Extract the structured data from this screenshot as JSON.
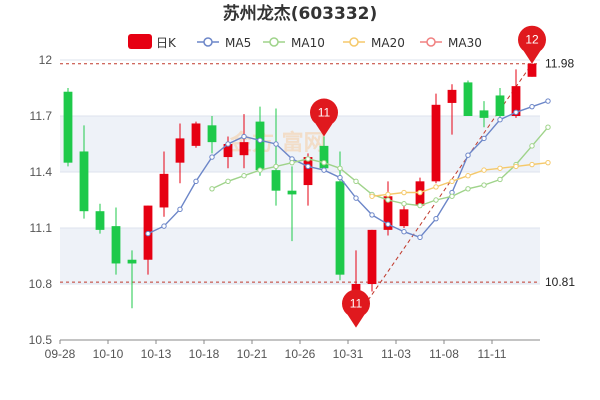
{
  "title": "苏州龙杰(603332)",
  "watermark": "金方 富网",
  "legend": [
    {
      "key": "k",
      "label": "日K",
      "color": "#e60012"
    },
    {
      "key": "ma5",
      "label": "MA5",
      "color": "#6c86c8"
    },
    {
      "key": "ma10",
      "label": "MA10",
      "color": "#9fd38a"
    },
    {
      "key": "ma20",
      "label": "MA20",
      "color": "#f5c96b"
    },
    {
      "key": "ma30",
      "label": "MA30",
      "color": "#f08080"
    }
  ],
  "colors": {
    "up": "#e60012",
    "down": "#1ec94a",
    "grid": "#dde3ee",
    "band": "#eef2f8",
    "ref": "#c0392b"
  },
  "chart_data": {
    "type": "candlestick",
    "title": "苏州龙杰(603332)",
    "ylim": [
      10.5,
      12.0
    ],
    "yticks": [
      10.5,
      10.8,
      11.1,
      11.4,
      11.7,
      12
    ],
    "xticks": [
      "09-28",
      "10-10",
      "10-13",
      "10-18",
      "10-21",
      "10-26",
      "10-31",
      "11-03",
      "11-08",
      "11-11"
    ],
    "candles": [
      {
        "o": 11.83,
        "h": 11.85,
        "l": 11.43,
        "c": 11.45
      },
      {
        "o": 11.51,
        "h": 11.65,
        "l": 11.15,
        "c": 11.19
      },
      {
        "o": 11.19,
        "h": 11.23,
        "l": 11.07,
        "c": 11.09
      },
      {
        "o": 11.11,
        "h": 11.21,
        "l": 10.85,
        "c": 10.91
      },
      {
        "o": 10.93,
        "h": 10.98,
        "l": 10.67,
        "c": 10.91
      },
      {
        "o": 10.93,
        "h": 11.22,
        "l": 10.85,
        "c": 11.22
      },
      {
        "o": 11.21,
        "h": 11.51,
        "l": 11.16,
        "c": 11.39
      },
      {
        "o": 11.45,
        "h": 11.66,
        "l": 11.34,
        "c": 11.58
      },
      {
        "o": 11.54,
        "h": 11.67,
        "l": 11.53,
        "c": 11.66
      },
      {
        "o": 11.65,
        "h": 11.7,
        "l": 11.5,
        "c": 11.56
      },
      {
        "o": 11.48,
        "h": 11.59,
        "l": 11.42,
        "c": 11.55
      },
      {
        "o": 11.49,
        "h": 11.71,
        "l": 11.42,
        "c": 11.56
      },
      {
        "o": 11.67,
        "h": 11.75,
        "l": 11.38,
        "c": 11.41
      },
      {
        "o": 11.41,
        "h": 11.74,
        "l": 11.22,
        "c": 11.3
      },
      {
        "o": 11.3,
        "h": 11.43,
        "l": 11.03,
        "c": 11.28
      },
      {
        "o": 11.33,
        "h": 11.5,
        "l": 11.22,
        "c": 11.48
      },
      {
        "o": 11.54,
        "h": 11.59,
        "l": 11.42,
        "c": 11.42
      },
      {
        "o": 11.35,
        "h": 11.51,
        "l": 10.82,
        "c": 10.85
      },
      {
        "o": 10.76,
        "h": 10.98,
        "l": 10.62,
        "c": 10.8
      },
      {
        "o": 10.8,
        "h": 11.09,
        "l": 10.76,
        "c": 11.09
      },
      {
        "o": 11.09,
        "h": 11.35,
        "l": 11.06,
        "c": 11.27
      },
      {
        "o": 11.11,
        "h": 11.23,
        "l": 11.1,
        "c": 11.2
      },
      {
        "o": 11.22,
        "h": 11.37,
        "l": 11.21,
        "c": 11.35
      },
      {
        "o": 11.35,
        "h": 11.82,
        "l": 11.34,
        "c": 11.76
      },
      {
        "o": 11.77,
        "h": 11.87,
        "l": 11.6,
        "c": 11.84
      },
      {
        "o": 11.88,
        "h": 11.89,
        "l": 11.7,
        "c": 11.7
      },
      {
        "o": 11.73,
        "h": 11.78,
        "l": 11.64,
        "c": 11.69
      },
      {
        "o": 11.81,
        "h": 11.85,
        "l": 11.69,
        "c": 11.7
      },
      {
        "o": 11.7,
        "h": 11.95,
        "l": 11.69,
        "c": 11.86
      },
      {
        "o": 11.91,
        "h": 11.98,
        "l": 11.91,
        "c": 11.98
      }
    ],
    "series": [
      {
        "name": "MA5",
        "start": 5,
        "values": [
          11.07,
          11.11,
          11.2,
          11.35,
          11.48,
          11.55,
          11.59,
          11.57,
          11.55,
          11.47,
          11.43,
          11.41,
          11.37,
          11.26,
          11.17,
          11.12,
          11.08,
          11.05,
          11.15,
          11.29,
          11.49,
          11.58,
          11.68,
          11.72,
          11.75,
          11.78
        ]
      },
      {
        "name": "MA10",
        "start": 9,
        "values": [
          11.31,
          11.35,
          11.38,
          11.41,
          11.43,
          11.45,
          11.47,
          11.45,
          11.42,
          11.35,
          11.28,
          11.25,
          11.23,
          11.22,
          11.25,
          11.27,
          11.31,
          11.33,
          11.36,
          11.44,
          11.54,
          11.64
        ]
      },
      {
        "name": "MA20",
        "start": 19,
        "values": [
          11.27,
          11.28,
          11.29,
          11.29,
          11.32,
          11.35,
          11.38,
          11.41,
          11.42,
          11.43,
          11.44,
          11.45
        ]
      },
      {
        "name": "MA30",
        "start": 29,
        "values": []
      }
    ],
    "reference_lines": {
      "high": 11.98,
      "low": 10.81
    },
    "markers": [
      {
        "label": "11",
        "index": 16,
        "value": 11.59,
        "position": "above"
      },
      {
        "label": "11",
        "index": 18,
        "value": 10.62,
        "position": "below"
      },
      {
        "label": "12",
        "index": 29,
        "value": 11.98,
        "position": "above"
      }
    ],
    "trend_line": {
      "from_index": 18,
      "from_value": 10.62,
      "to_index": 29,
      "to_value": 11.98
    }
  }
}
